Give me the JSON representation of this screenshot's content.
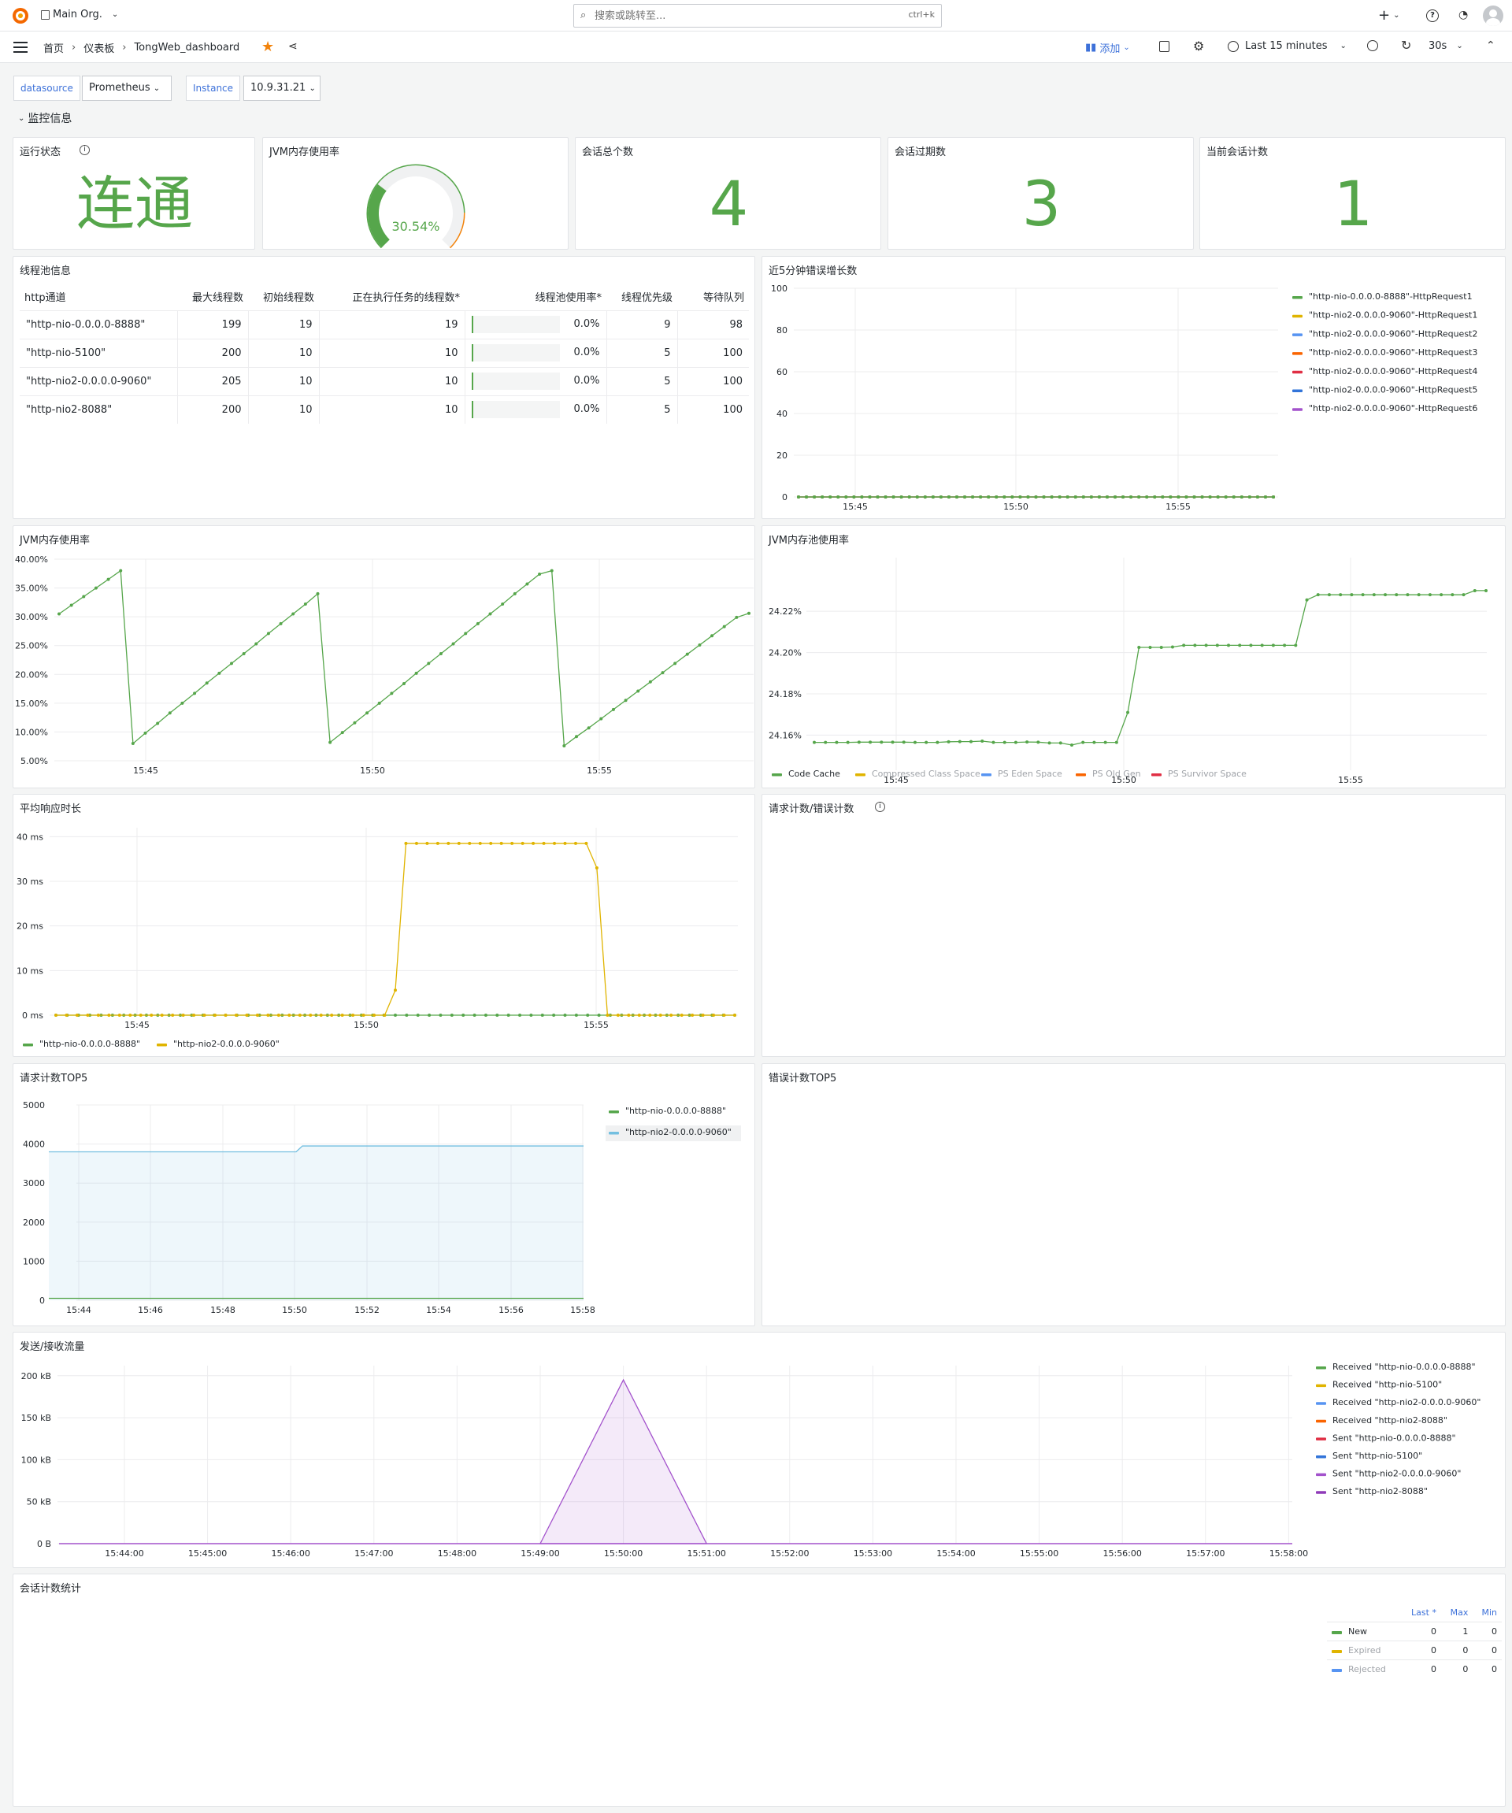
{
  "topbar": {
    "org": "Main Org.",
    "search_placeholder": "搜索或跳转至...",
    "search_shortcut": "ctrl+k",
    "add_plus": "+"
  },
  "navbar": {
    "breadcrumb": [
      "首页",
      "仪表板",
      "TongWeb_dashboard"
    ],
    "add_label": "添加",
    "time_range": "Last 15 minutes",
    "refresh_interval": "30s"
  },
  "variables": [
    {
      "label": "datasource",
      "value": "Prometheus"
    },
    {
      "label": "Instance",
      "value": "10.9.31.21"
    }
  ],
  "row_title": "监控信息",
  "stats": {
    "status": {
      "title": "运行状态",
      "value": "连通",
      "color": "#56a64b"
    },
    "jvm_gauge": {
      "title": "JVM内存使用率",
      "value": "30.54%",
      "percent": 30.54
    },
    "sessions_total": {
      "title": "会话总个数",
      "value": "4"
    },
    "sessions_expired": {
      "title": "会话过期数",
      "value": "3"
    },
    "sessions_current": {
      "title": "当前会话计数",
      "value": "1"
    }
  },
  "threadpool": {
    "title": "线程池信息",
    "headers": [
      "http通道",
      "最大线程数",
      "初始线程数",
      "正在执行任务的线程数*",
      "线程池使用率*",
      "线程优先级",
      "等待队列"
    ],
    "rows": [
      [
        "\"http-nio-0.0.0.0-8888\"",
        "199",
        "19",
        "19",
        "0.0%",
        "9",
        "98"
      ],
      [
        "\"http-nio-5100\"",
        "200",
        "10",
        "10",
        "0.0%",
        "5",
        "100"
      ],
      [
        "\"http-nio2-0.0.0.0-9060\"",
        "205",
        "10",
        "10",
        "0.0%",
        "5",
        "100"
      ],
      [
        "\"http-nio2-8088\"",
        "200",
        "10",
        "10",
        "0.0%",
        "5",
        "100"
      ]
    ]
  },
  "panel_titles": {
    "jvm_mem": "JVM内存使用率",
    "jvm_pool": "JVM内存池使用率",
    "avg_resp": "平均响应时长",
    "req_err": "请求计数/错误计数",
    "req_top5": "请求计数TOP5",
    "err_top5": "错误计数TOP5",
    "session_stats": "会话计数统计"
  },
  "session_table": {
    "headers": [
      "Last *",
      "Max",
      "Min"
    ],
    "rows": [
      {
        "name": "New",
        "color": "#56a64b",
        "last": "0",
        "max": "1",
        "min": "0"
      },
      {
        "name": "Expired",
        "color": "#e0b400",
        "last": "0",
        "max": "0",
        "min": "0"
      },
      {
        "name": "Rejected",
        "color": "#5794f2",
        "last": "0",
        "max": "0",
        "min": "0"
      }
    ]
  },
  "chart_data": [
    {
      "id": "err_growth",
      "type": "line",
      "title": "近5分钟错误增长数",
      "x_ticks": [
        "15:45",
        "15:50",
        "15:55"
      ],
      "y_ticks": [
        "0",
        "20",
        "40",
        "60",
        "80",
        "100"
      ],
      "ylim": [
        0,
        100
      ],
      "series": [
        {
          "name": "\"http-nio-0.0.0.0-8888\"-HttpRequest1",
          "color": "#56a64b",
          "value": 0
        },
        {
          "name": "\"http-nio2-0.0.0.0-9060\"-HttpRequest1",
          "color": "#e0b400",
          "value": 0
        },
        {
          "name": "\"http-nio2-0.0.0.0-9060\"-HttpRequest2",
          "color": "#5794f2",
          "value": 0
        },
        {
          "name": "\"http-nio2-0.0.0.0-9060\"-HttpRequest3",
          "color": "#fa6400",
          "value": 0
        },
        {
          "name": "\"http-nio2-0.0.0.0-9060\"-HttpRequest4",
          "color": "#e02f44",
          "value": 0
        },
        {
          "name": "\"http-nio2-0.0.0.0-9060\"-HttpRequest5",
          "color": "#3274d9",
          "value": 0
        },
        {
          "name": "\"http-nio2-0.0.0.0-9060\"-HttpRequest6",
          "color": "#a352cc",
          "value": 0
        }
      ]
    },
    {
      "id": "jvm_mem",
      "type": "line",
      "title": "JVM内存使用率",
      "x_ticks": [
        "15:45",
        "15:50",
        "15:55"
      ],
      "y_ticks": [
        "5.00%",
        "10.00%",
        "15.00%",
        "20.00%",
        "25.00%",
        "30.00%",
        "35.00%",
        "40.00%"
      ],
      "ylim": [
        5,
        40
      ],
      "series": [
        {
          "name": "JVM",
          "color": "#56a64b",
          "values": [
            30.5,
            32.0,
            33.5,
            35.0,
            36.5,
            38.0,
            8.0,
            9.8,
            11.5,
            13.3,
            15.0,
            16.7,
            18.5,
            20.2,
            21.9,
            23.6,
            25.3,
            27.1,
            28.8,
            30.5,
            32.2,
            34.0,
            8.2,
            9.9,
            11.6,
            13.3,
            15.0,
            16.7,
            18.4,
            20.2,
            21.9,
            23.6,
            25.3,
            27.1,
            28.8,
            30.5,
            32.2,
            34.0,
            35.7,
            37.4,
            38.0,
            7.6,
            9.2,
            10.7,
            12.3,
            13.9,
            15.5,
            17.1,
            18.7,
            20.3,
            21.9,
            23.5,
            25.1,
            26.7,
            28.3,
            29.9,
            30.6
          ]
        }
      ]
    },
    {
      "id": "jvm_pool",
      "type": "line",
      "title": "JVM内存池使用率",
      "x_ticks": [
        "15:45",
        "15:50",
        "15:55"
      ],
      "y_ticks": [
        "24.16%",
        "24.18%",
        "24.20%",
        "24.22%"
      ],
      "ylim": [
        24.143,
        24.246
      ],
      "series": [
        {
          "name": "Code Cache",
          "color": "#56a64b",
          "values": [
            24.1565,
            24.1565,
            24.1565,
            24.1565,
            24.1566,
            24.1566,
            24.1566,
            24.1566,
            24.1566,
            24.1565,
            24.1565,
            24.1565,
            24.1568,
            24.1569,
            24.1569,
            24.1571,
            24.1565,
            24.1565,
            24.1565,
            24.1567,
            24.1566,
            24.1562,
            24.1562,
            24.1552,
            24.1565,
            24.1565,
            24.1565,
            24.1565,
            24.171,
            24.2025,
            24.2025,
            24.2025,
            24.2027,
            24.2035,
            24.2035,
            24.2035,
            24.2035,
            24.2035,
            24.2035,
            24.2035,
            24.2035,
            24.2035,
            24.2035,
            24.2035,
            24.2255,
            24.228,
            24.228,
            24.228,
            24.228,
            24.228,
            24.228,
            24.228,
            24.228,
            24.228,
            24.228,
            24.228,
            24.228,
            24.228,
            24.228,
            24.23,
            24.23
          ]
        },
        {
          "name": "Compressed Class Space",
          "color": "#e0b400"
        },
        {
          "name": "PS Eden Space",
          "color": "#5794f2"
        },
        {
          "name": "PS Old Gen",
          "color": "#fa6400"
        },
        {
          "name": "PS Survivor Space",
          "color": "#e02f44"
        }
      ]
    },
    {
      "id": "avg_resp",
      "type": "line",
      "title": "平均响应时长",
      "x_ticks": [
        "15:45",
        "15:50",
        "15:55"
      ],
      "y_ticks": [
        "0 ms",
        "10 ms",
        "20 ms",
        "30 ms",
        "40 ms"
      ],
      "ylim": [
        0,
        42
      ],
      "series": [
        {
          "name": "\"http-nio-0.0.0.0-8888\"",
          "color": "#56a64b",
          "values": [
            0,
            0,
            0,
            0,
            0,
            0,
            0,
            0,
            0,
            0,
            0,
            0,
            0,
            0,
            0,
            0,
            0,
            0,
            0,
            0,
            0,
            0,
            0,
            0,
            0,
            0,
            0,
            0,
            0,
            0,
            0,
            0,
            0,
            0,
            0,
            0,
            0,
            0,
            0,
            0,
            0,
            0,
            0,
            0,
            0,
            0,
            0,
            0,
            0,
            0,
            0,
            0,
            0,
            0,
            0,
            0,
            0,
            0,
            0,
            0,
            0
          ]
        },
        {
          "name": "\"http-nio2-0.0.0.0-9060\"",
          "color": "#e0b400",
          "values": [
            0,
            0,
            0,
            0,
            0,
            0,
            0,
            0,
            0,
            0,
            0,
            0,
            0,
            0,
            0,
            0,
            0,
            0,
            0,
            0,
            0,
            0,
            0,
            0,
            0,
            0,
            0,
            0,
            0,
            0,
            0,
            0,
            5.6,
            38.5,
            38.5,
            38.5,
            38.5,
            38.5,
            38.5,
            38.5,
            38.5,
            38.5,
            38.5,
            38.5,
            38.5,
            38.5,
            38.5,
            38.5,
            38.5,
            38.5,
            38.5,
            33.0,
            0,
            0,
            0,
            0,
            0,
            0,
            0,
            0,
            0,
            0,
            0,
            0,
            0
          ]
        }
      ]
    },
    {
      "id": "req_top5",
      "type": "area",
      "title": "请求计数TOP5",
      "x_ticks": [
        "15:44",
        "15:46",
        "15:48",
        "15:50",
        "15:52",
        "15:54",
        "15:56",
        "15:58"
      ],
      "y_ticks": [
        "0",
        "1000",
        "2000",
        "3000",
        "4000",
        "5000"
      ],
      "ylim": [
        0,
        5000
      ],
      "series": [
        {
          "name": "\"http-nio-0.0.0.0-8888\"",
          "color": "#56a64b",
          "value": 50
        },
        {
          "name": "\"http-nio2-0.0.0.0-9060\"",
          "color": "#73bfe0",
          "before": 3800,
          "after": 3950
        }
      ]
    },
    {
      "id": "traffic",
      "type": "area",
      "title": "发送/接收流量",
      "x_ticks": [
        "15:44:00",
        "15:45:00",
        "15:46:00",
        "15:47:00",
        "15:48:00",
        "15:49:00",
        "15:50:00",
        "15:51:00",
        "15:52:00",
        "15:53:00",
        "15:54:00",
        "15:55:00",
        "15:56:00",
        "15:57:00",
        "15:58:00"
      ],
      "y_ticks": [
        "0 B",
        "50 kB",
        "100 kB",
        "150 kB",
        "200 kB"
      ],
      "ylim": [
        0,
        200
      ],
      "peak": {
        "time": "15:50:00",
        "value_kB": 195
      },
      "series": [
        {
          "name": "Received \"http-nio-0.0.0.0-8888\"",
          "color": "#56a64b"
        },
        {
          "name": "Received \"http-nio-5100\"",
          "color": "#e0b400"
        },
        {
          "name": "Received \"http-nio2-0.0.0.0-9060\"",
          "color": "#5794f2"
        },
        {
          "name": "Received \"http-nio2-8088\"",
          "color": "#fa6400"
        },
        {
          "name": "Sent \"http-nio-0.0.0.0-8888\"",
          "color": "#e02f44"
        },
        {
          "name": "Sent \"http-nio-5100\"",
          "color": "#3274d9"
        },
        {
          "name": "Sent \"http-nio2-0.0.0.0-9060\"",
          "color": "#a352cc"
        },
        {
          "name": "Sent \"http-nio2-8088\"",
          "color": "#8f3bb8"
        }
      ]
    }
  ]
}
